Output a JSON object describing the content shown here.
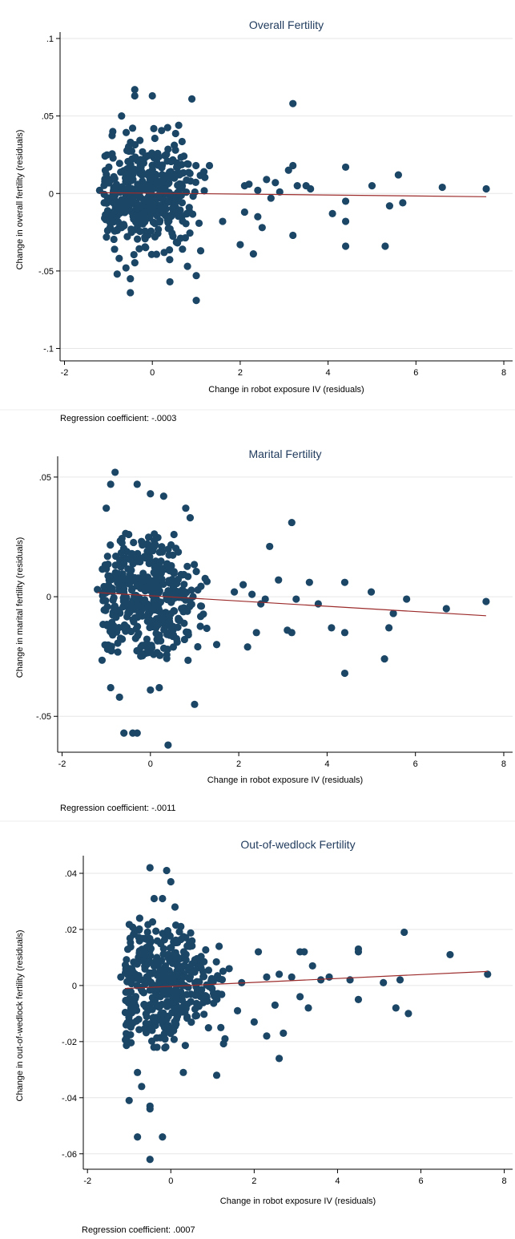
{
  "chart_data": [
    {
      "type": "scatter",
      "title": "Overall Fertility",
      "xlabel": "Change in robot exposure IV (residuals)",
      "ylabel": "Change in overall fertility (residuals)",
      "xlim": [
        -2.1,
        8.2
      ],
      "ylim": [
        -0.108,
        0.1
      ],
      "xticks": [
        -2,
        0,
        2,
        4,
        6,
        8
      ],
      "xtick_labels": [
        "-2",
        "0",
        "2",
        "4",
        "6",
        "8"
      ],
      "yticks": [
        -0.1,
        -0.05,
        0,
        0.05,
        0.1
      ],
      "ytick_labels": [
        "-.1",
        "-.05",
        "0",
        ".05",
        ".1"
      ],
      "grid": true,
      "note": "Regression coefficient: -.0003",
      "fit": {
        "slope": -0.0003,
        "x_range": [
          -1.2,
          7.6
        ],
        "intercept": 0.0002
      },
      "sample": {
        "seed": 11,
        "n": 430,
        "sd": 0.017,
        "sd_x": 0.6
      },
      "points": [
        [
          -1.2,
          0.002
        ],
        [
          -0.4,
          0.067
        ],
        [
          -0.4,
          0.063
        ],
        [
          0.0,
          0.063
        ],
        [
          -0.7,
          0.05
        ],
        [
          0.9,
          0.061
        ],
        [
          3.2,
          0.058
        ],
        [
          -0.8,
          -0.052
        ],
        [
          -0.6,
          -0.048
        ],
        [
          -0.5,
          -0.055
        ],
        [
          -0.5,
          -0.064
        ],
        [
          0.4,
          -0.057
        ],
        [
          0.8,
          -0.047
        ],
        [
          1.0,
          -0.053
        ],
        [
          1.0,
          -0.069
        ],
        [
          1.1,
          -0.037
        ],
        [
          -0.9,
          0.04
        ],
        [
          0.6,
          0.044
        ],
        [
          1.3,
          0.018
        ],
        [
          2.1,
          0.005
        ],
        [
          2.2,
          0.006
        ],
        [
          2.4,
          0.002
        ],
        [
          2.6,
          0.009
        ],
        [
          2.8,
          0.007
        ],
        [
          2.9,
          0.001
        ],
        [
          3.1,
          0.015
        ],
        [
          3.2,
          0.018
        ],
        [
          3.3,
          0.005
        ],
        [
          3.5,
          0.005
        ],
        [
          3.6,
          0.003
        ],
        [
          4.4,
          0.017
        ],
        [
          5.0,
          0.005
        ],
        [
          5.6,
          0.012
        ],
        [
          6.6,
          0.004
        ],
        [
          7.6,
          0.003
        ],
        [
          2.1,
          -0.012
        ],
        [
          2.4,
          -0.015
        ],
        [
          2.5,
          -0.022
        ],
        [
          2.0,
          -0.033
        ],
        [
          2.3,
          -0.039
        ],
        [
          3.2,
          -0.027
        ],
        [
          4.1,
          -0.013
        ],
        [
          4.4,
          -0.005
        ],
        [
          4.4,
          -0.018
        ],
        [
          4.4,
          -0.034
        ],
        [
          5.3,
          -0.034
        ],
        [
          5.4,
          -0.008
        ],
        [
          5.7,
          -0.006
        ],
        [
          2.7,
          -0.003
        ],
        [
          1.6,
          -0.018
        ]
      ]
    },
    {
      "type": "scatter",
      "title": "Marital Fertility",
      "xlabel": "Change in robot exposure IV (residuals)",
      "ylabel": "Change in marital fertility (residuals)",
      "xlim": [
        -2.1,
        8.2
      ],
      "ylim": [
        -0.065,
        0.056
      ],
      "xticks": [
        -2,
        0,
        2,
        4,
        6,
        8
      ],
      "xtick_labels": [
        "-2",
        "0",
        "2",
        "4",
        "6",
        "8"
      ],
      "yticks": [
        -0.05,
        0,
        0.05
      ],
      "ytick_labels": [
        "-.05",
        "0",
        ".05"
      ],
      "grid": true,
      "note": "Regression coefficient: -.0011",
      "fit": {
        "slope": -0.0011,
        "x_range": [
          -1.2,
          7.6
        ],
        "intercept": 0.0004
      },
      "sample": {
        "seed": 23,
        "n": 430,
        "sd": 0.014,
        "sd_x": 0.6
      },
      "points": [
        [
          -1.2,
          0.003
        ],
        [
          -0.8,
          0.052
        ],
        [
          -0.9,
          0.047
        ],
        [
          -0.3,
          0.047
        ],
        [
          0.0,
          0.043
        ],
        [
          0.3,
          0.042
        ],
        [
          -1.0,
          0.037
        ],
        [
          0.8,
          0.037
        ],
        [
          0.9,
          0.033
        ],
        [
          3.2,
          0.031
        ],
        [
          -0.7,
          -0.042
        ],
        [
          -0.6,
          -0.057
        ],
        [
          -0.4,
          -0.057
        ],
        [
          -0.3,
          -0.057
        ],
        [
          0.4,
          -0.062
        ],
        [
          0.0,
          -0.039
        ],
        [
          0.2,
          -0.038
        ],
        [
          1.0,
          -0.045
        ],
        [
          -0.9,
          -0.038
        ],
        [
          2.7,
          0.021
        ],
        [
          1.9,
          0.002
        ],
        [
          2.1,
          0.005
        ],
        [
          2.3,
          0.001
        ],
        [
          2.5,
          -0.003
        ],
        [
          2.9,
          0.007
        ],
        [
          3.3,
          -0.001
        ],
        [
          3.6,
          0.006
        ],
        [
          3.8,
          -0.003
        ],
        [
          4.4,
          0.006
        ],
        [
          5.0,
          0.002
        ],
        [
          5.8,
          -0.001
        ],
        [
          6.7,
          -0.005
        ],
        [
          7.6,
          -0.002
        ],
        [
          5.5,
          -0.007
        ],
        [
          5.4,
          -0.013
        ],
        [
          5.3,
          -0.026
        ],
        [
          4.4,
          -0.032
        ],
        [
          4.4,
          -0.015
        ],
        [
          4.1,
          -0.013
        ],
        [
          3.1,
          -0.014
        ],
        [
          3.2,
          -0.015
        ],
        [
          2.4,
          -0.015
        ],
        [
          2.2,
          -0.021
        ],
        [
          1.5,
          -0.02
        ],
        [
          2.6,
          -0.001
        ]
      ]
    },
    {
      "type": "scatter",
      "title": "Out-of-wedlock Fertility",
      "xlabel": "Change in robot exposure IV (residuals)",
      "ylabel": "Change in out-of-wedlock fertility (residuals)",
      "xlim": [
        -2.1,
        8.2
      ],
      "ylim": [
        -0.0655,
        0.044
      ],
      "xticks": [
        -2,
        0,
        2,
        4,
        6,
        8
      ],
      "xtick_labels": [
        "-2",
        "0",
        "2",
        "4",
        "6",
        "8"
      ],
      "yticks": [
        -0.06,
        -0.04,
        -0.02,
        0,
        0.02,
        0.04
      ],
      "ytick_labels": [
        "-.06",
        "-.04",
        "-.02",
        "0",
        ".02",
        ".04"
      ],
      "grid": true,
      "note": "Regression coefficient: .0007",
      "fit": {
        "slope": 0.0007,
        "x_range": [
          -1.1,
          7.6
        ],
        "intercept": -0.0003
      },
      "sample": {
        "seed": 37,
        "n": 430,
        "sd": 0.0105,
        "sd_x": 0.6
      },
      "points": [
        [
          -1.2,
          0.003
        ],
        [
          -0.5,
          0.042
        ],
        [
          -0.1,
          0.041
        ],
        [
          0.0,
          0.037
        ],
        [
          -0.4,
          0.031
        ],
        [
          -0.2,
          0.031
        ],
        [
          0.1,
          0.028
        ],
        [
          -1.0,
          -0.041
        ],
        [
          -0.8,
          -0.031
        ],
        [
          -0.5,
          -0.043
        ],
        [
          -0.5,
          -0.044
        ],
        [
          -0.8,
          -0.054
        ],
        [
          -0.2,
          -0.054
        ],
        [
          -0.5,
          -0.062
        ],
        [
          0.3,
          -0.031
        ],
        [
          1.1,
          -0.032
        ],
        [
          -0.7,
          -0.036
        ],
        [
          1.4,
          0.006
        ],
        [
          1.7,
          0.001
        ],
        [
          2.1,
          0.012
        ],
        [
          2.3,
          0.003
        ],
        [
          2.6,
          0.004
        ],
        [
          2.9,
          0.003
        ],
        [
          3.1,
          0.012
        ],
        [
          3.2,
          0.012
        ],
        [
          3.4,
          0.007
        ],
        [
          3.6,
          0.002
        ],
        [
          3.8,
          0.003
        ],
        [
          4.3,
          0.002
        ],
        [
          4.5,
          0.013
        ],
        [
          4.5,
          0.012
        ],
        [
          5.1,
          0.001
        ],
        [
          5.5,
          0.002
        ],
        [
          5.6,
          0.019
        ],
        [
          6.7,
          0.011
        ],
        [
          7.6,
          0.004
        ],
        [
          5.7,
          -0.01
        ],
        [
          5.4,
          -0.008
        ],
        [
          4.5,
          -0.005
        ],
        [
          3.3,
          -0.008
        ],
        [
          3.1,
          -0.004
        ],
        [
          2.6,
          -0.026
        ],
        [
          2.3,
          -0.018
        ],
        [
          2.0,
          -0.013
        ],
        [
          2.5,
          -0.007
        ],
        [
          1.6,
          -0.009
        ],
        [
          1.3,
          -0.019
        ],
        [
          1.2,
          -0.015
        ],
        [
          2.7,
          -0.017
        ]
      ]
    }
  ]
}
